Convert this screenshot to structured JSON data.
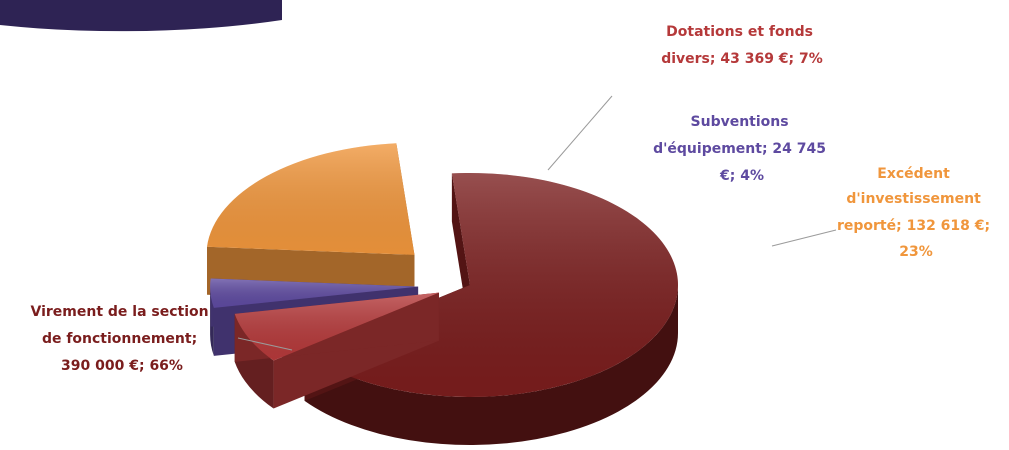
{
  "chart_data": {
    "type": "pie",
    "style": "3d-exploded",
    "title": "",
    "slices": [
      {
        "name": "Virement de la section de fonctionnement",
        "amount": "390 000 €",
        "value": 390000,
        "percent": 66,
        "color": "#7a1d1d",
        "label_lines": [
          "Virement de la section",
          "de fonctionnement;",
          "390 000 €; 66%"
        ]
      },
      {
        "name": "Dotations et fonds divers",
        "amount": "43 369 €",
        "value": 43369,
        "percent": 7,
        "color": "#b5393a",
        "label_lines": [
          "Dotations et fonds",
          "divers; 43 369 €; 7%"
        ]
      },
      {
        "name": "Subventions d'équipement",
        "amount": "24 745 €",
        "value": 24745,
        "percent": 4,
        "color": "#5e4aa0",
        "label_lines": [
          "Subventions",
          "d'équipement; 24 745",
          "€; 4%"
        ]
      },
      {
        "name": "Excédent d'investissement reporté",
        "amount": "132 618 €",
        "value": 132618,
        "percent": 23,
        "color": "#f0963c",
        "label_lines": [
          "Excédent",
          "d'investissement",
          "reporté; 132 618 €;",
          "23%"
        ]
      }
    ],
    "partial_pie_top_left": {
      "color": "#5e4aa0"
    }
  }
}
